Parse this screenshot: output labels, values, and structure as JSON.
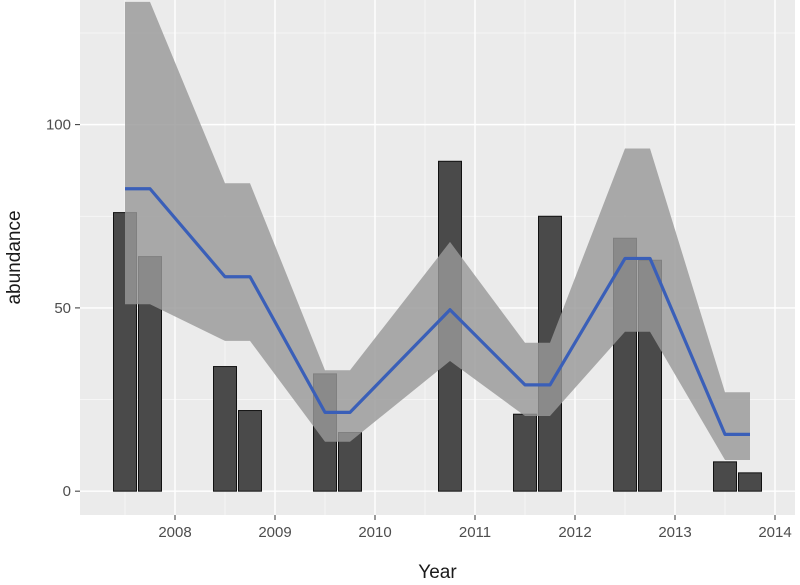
{
  "chart_data": {
    "type": "bar",
    "title": "",
    "xlabel": "Year",
    "ylabel": "abundance",
    "x_ticks": [
      "2008",
      "2009",
      "2010",
      "2011",
      "2012",
      "2013",
      "2014"
    ],
    "y_ticks": [
      "0",
      "50",
      "100"
    ],
    "xlim": [
      2007.05,
      2014.2
    ],
    "ylim": [
      -6.5,
      134
    ],
    "grid": true,
    "legend": "none",
    "bars": [
      {
        "x": 2007.5,
        "value": 76
      },
      {
        "x": 2007.75,
        "value": 64
      },
      {
        "x": 2008.5,
        "value": 34
      },
      {
        "x": 2008.75,
        "value": 22
      },
      {
        "x": 2009.5,
        "value": 32
      },
      {
        "x": 2009.75,
        "value": 16
      },
      {
        "x": 2010.75,
        "value": 90
      },
      {
        "x": 2011.5,
        "value": 21
      },
      {
        "x": 2011.75,
        "value": 75
      },
      {
        "x": 2012.5,
        "value": 69
      },
      {
        "x": 2012.75,
        "value": 63
      },
      {
        "x": 2013.5,
        "value": 8
      },
      {
        "x": 2013.75,
        "value": 5
      }
    ],
    "fit_line": {
      "x": [
        2007.5,
        2007.75,
        2008.5,
        2008.75,
        2009.5,
        2009.75,
        2010.75,
        2011.5,
        2011.75,
        2012.5,
        2012.75,
        2013.5,
        2013.75
      ],
      "y": [
        82.5,
        82.5,
        58.5,
        58.5,
        21.5,
        21.5,
        49.5,
        29,
        29,
        63.5,
        63.5,
        15.5,
        15.5
      ],
      "lower": [
        51,
        51,
        41,
        41,
        13.5,
        13.5,
        35.5,
        20.5,
        20.5,
        43.5,
        43.5,
        8.5,
        8.5
      ],
      "upper": [
        133.5,
        133.5,
        84,
        84,
        33,
        33,
        68,
        40.5,
        40.5,
        93.5,
        93.5,
        27,
        27
      ]
    },
    "colors": {
      "panel": "#ebebeb",
      "grid_major": "#ffffff",
      "bar_fill": "#4a4a4a",
      "bar_outline": "#111111",
      "ribbon": "#999999",
      "line": "#3a5fb8"
    }
  }
}
